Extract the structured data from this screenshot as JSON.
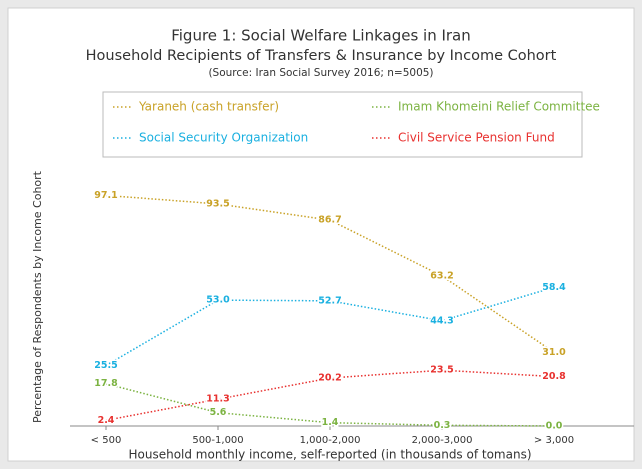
{
  "chart_data": {
    "type": "line",
    "title": "Figure 1: Social Welfare Linkages in Iran",
    "subtitle": "Household Recipients of Transfers & Insurance by Income Cohort",
    "source": "(Source: Iran Social Survey 2016; n=5005)",
    "x_label": "Household monthly income, self-reported (in thousands of tomans)",
    "y_label": "Percentage of Respondents by Income Cohort",
    "categories": [
      "< 500",
      "500-1,000",
      "1,000-2,000",
      "2,000-3,000",
      "> 3,000"
    ],
    "ylim": [
      0,
      100
    ],
    "series": [
      {
        "name": "Yaraneh (cash transfer)",
        "color": "#c9a227",
        "values": [
          97.1,
          93.5,
          86.7,
          63.2,
          31.0
        ],
        "value_labels": [
          "97.1",
          "93.5",
          "86.7",
          "63.2",
          "31.0"
        ]
      },
      {
        "name": "Imam Khomeini Relief Committee",
        "color": "#7cb342",
        "values": [
          17.8,
          5.6,
          1.4,
          0.3,
          0.0
        ],
        "value_labels": [
          "17.8",
          "5.6",
          "1.4",
          "0.3",
          "0.0"
        ]
      },
      {
        "name": "Social Security Organization",
        "color": "#1ab0e0",
        "values": [
          25.5,
          53.0,
          52.7,
          44.3,
          58.4
        ],
        "value_labels": [
          "25.5",
          "53.0",
          "52.7",
          "44.3",
          "58.4"
        ]
      },
      {
        "name": "Civil Service Pension Fund",
        "color": "#e8312f",
        "values": [
          2.4,
          11.3,
          20.2,
          23.5,
          20.8
        ],
        "value_labels": [
          "2.4",
          "11.3",
          "20.2",
          "23.5",
          "20.8"
        ]
      }
    ]
  }
}
